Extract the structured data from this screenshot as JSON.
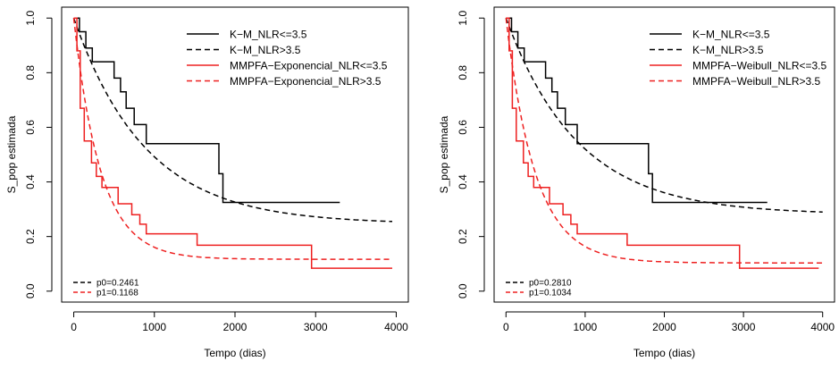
{
  "chart_data": [
    {
      "type": "line",
      "title": "",
      "xlabel": "Tempo (dias)",
      "ylabel": "S_pop estimada",
      "xlim": [
        -150,
        4150
      ],
      "ylim": [
        -0.04,
        1.04
      ],
      "x_ticks": [
        0,
        1000,
        2000,
        3000,
        4000
      ],
      "y_ticks": [
        0.0,
        0.2,
        0.4,
        0.6,
        0.8,
        1.0
      ],
      "grid": false,
      "legend": {
        "placement": "top-right",
        "entries": [
          {
            "label": "K−M_NLR<=3.5",
            "color": "#000000",
            "dash": "solid"
          },
          {
            "label": "K−M_NLR>3.5",
            "color": "#000000",
            "dash": "dashed"
          },
          {
            "label": "MMPFA−Exponencial_NLR<=3.5",
            "color": "#ee2020",
            "dash": "solid"
          },
          {
            "label": "MMPFA−Exponencial_NLR>3.5",
            "color": "#ee2020",
            "dash": "dashed"
          }
        ]
      },
      "annotation": {
        "placement": "bottom-left",
        "entries": [
          {
            "label": "p0=0.2461",
            "color": "#000000"
          },
          {
            "label": "p1=0.1168",
            "color": "#ee2020"
          }
        ]
      },
      "series": [
        {
          "name": "K−M_NLR<=3.5",
          "kind": "step",
          "color": "#000000",
          "dash": "solid",
          "x": [
            0,
            70,
            150,
            230,
            500,
            580,
            650,
            750,
            900,
            1800,
            1850,
            3300
          ],
          "y": [
            1.0,
            0.95,
            0.89,
            0.84,
            0.78,
            0.73,
            0.67,
            0.61,
            0.54,
            0.43,
            0.325,
            0.325
          ]
        },
        {
          "name": "K−M_NLR>3.5",
          "kind": "curve",
          "color": "#000000",
          "dash": "dashed",
          "curve": {
            "p": 0.2461,
            "lambda": 0.00112
          },
          "x_range": [
            0,
            3950
          ]
        },
        {
          "name": "MMPFA−Exponencial_NLR<=3.5",
          "kind": "step",
          "color": "#ee2020",
          "dash": "solid",
          "x": [
            0,
            40,
            80,
            130,
            220,
            280,
            350,
            550,
            720,
            820,
            900,
            1000,
            1530,
            2950,
            3950
          ],
          "y": [
            1.0,
            0.88,
            0.67,
            0.55,
            0.47,
            0.42,
            0.38,
            0.32,
            0.28,
            0.245,
            0.21,
            0.21,
            0.168,
            0.084,
            0.084
          ]
        },
        {
          "name": "MMPFA−Exponencial_NLR>3.5",
          "kind": "curve",
          "color": "#ee2020",
          "dash": "dashed",
          "curve": {
            "p": 0.1168,
            "lambda": 0.003
          },
          "x_range": [
            0,
            3950
          ]
        }
      ]
    },
    {
      "type": "line",
      "title": "",
      "xlabel": "Tempo (dias)",
      "ylabel": "S_pop estimada",
      "xlim": [
        -150,
        4150
      ],
      "ylim": [
        -0.04,
        1.04
      ],
      "x_ticks": [
        0,
        1000,
        2000,
        3000,
        4000
      ],
      "y_ticks": [
        0.0,
        0.2,
        0.4,
        0.6,
        0.8,
        1.0
      ],
      "grid": false,
      "legend": {
        "placement": "top-right",
        "entries": [
          {
            "label": "K−M_NLR<=3.5",
            "color": "#000000",
            "dash": "solid"
          },
          {
            "label": "K−M_NLR>3.5",
            "color": "#000000",
            "dash": "dashed"
          },
          {
            "label": "MMPFA−Weibull_NLR<=3.5",
            "color": "#ee2020",
            "dash": "solid"
          },
          {
            "label": "MMPFA−Weibull_NLR>3.5",
            "color": "#ee2020",
            "dash": "dashed"
          }
        ]
      },
      "annotation": {
        "placement": "bottom-left",
        "entries": [
          {
            "label": "p0=0.2810",
            "color": "#000000"
          },
          {
            "label": "p1=0.1034",
            "color": "#ee2020"
          }
        ]
      },
      "series": [
        {
          "name": "K−M_NLR<=3.5",
          "kind": "step",
          "color": "#000000",
          "dash": "solid",
          "x": [
            0,
            70,
            150,
            230,
            500,
            580,
            650,
            750,
            900,
            1800,
            1850,
            3300
          ],
          "y": [
            1.0,
            0.95,
            0.89,
            0.84,
            0.78,
            0.73,
            0.67,
            0.61,
            0.54,
            0.43,
            0.325,
            0.325
          ]
        },
        {
          "name": "K−M_NLR>3.5",
          "kind": "curve",
          "color": "#000000",
          "dash": "dashed",
          "curve": {
            "p": 0.281,
            "lambda": 0.0011
          },
          "x_range": [
            0,
            4000
          ]
        },
        {
          "name": "MMPFA−Weibull_NLR<=3.5",
          "kind": "step",
          "color": "#ee2020",
          "dash": "solid",
          "x": [
            0,
            40,
            80,
            130,
            220,
            280,
            350,
            550,
            720,
            820,
            900,
            1000,
            1530,
            2950,
            3950
          ],
          "y": [
            1.0,
            0.88,
            0.67,
            0.55,
            0.47,
            0.42,
            0.38,
            0.32,
            0.28,
            0.245,
            0.21,
            0.21,
            0.168,
            0.084,
            0.084
          ]
        },
        {
          "name": "MMPFA−Weibull_NLR>3.5",
          "kind": "curve",
          "color": "#ee2020",
          "dash": "dashed",
          "curve": {
            "p": 0.1034,
            "lambda": 0.0027
          },
          "x_range": [
            0,
            4000
          ]
        }
      ]
    }
  ]
}
